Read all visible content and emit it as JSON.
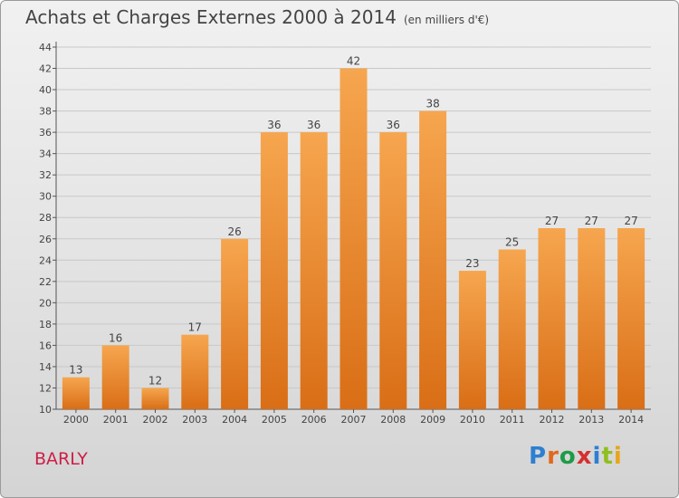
{
  "title": "Achats et Charges Externes 2000 à 2014",
  "subtitle": "(en milliers d'€)",
  "place": "BARLY",
  "logo": "Proxiti",
  "colors": {
    "bar_top": "#f6a64f",
    "bar_bottom": "#d96e16",
    "place": "#cc1f47"
  },
  "chart_data": {
    "type": "bar",
    "title": "Achats et Charges Externes 2000 à 2014",
    "subtitle": "(en milliers d'€)",
    "xlabel": "",
    "ylabel": "",
    "categories": [
      "2000",
      "2001",
      "2002",
      "2003",
      "2004",
      "2005",
      "2006",
      "2007",
      "2008",
      "2009",
      "2010",
      "2011",
      "2012",
      "2013",
      "2014"
    ],
    "values": [
      13,
      16,
      12,
      17,
      26,
      36,
      36,
      42,
      36,
      38,
      23,
      25,
      27,
      27,
      27
    ],
    "ylim": [
      10,
      44
    ],
    "yticks": [
      10,
      12,
      14,
      16,
      18,
      20,
      22,
      24,
      26,
      28,
      30,
      32,
      34,
      36,
      38,
      40,
      42,
      44
    ],
    "grid": true,
    "legend": "none"
  }
}
